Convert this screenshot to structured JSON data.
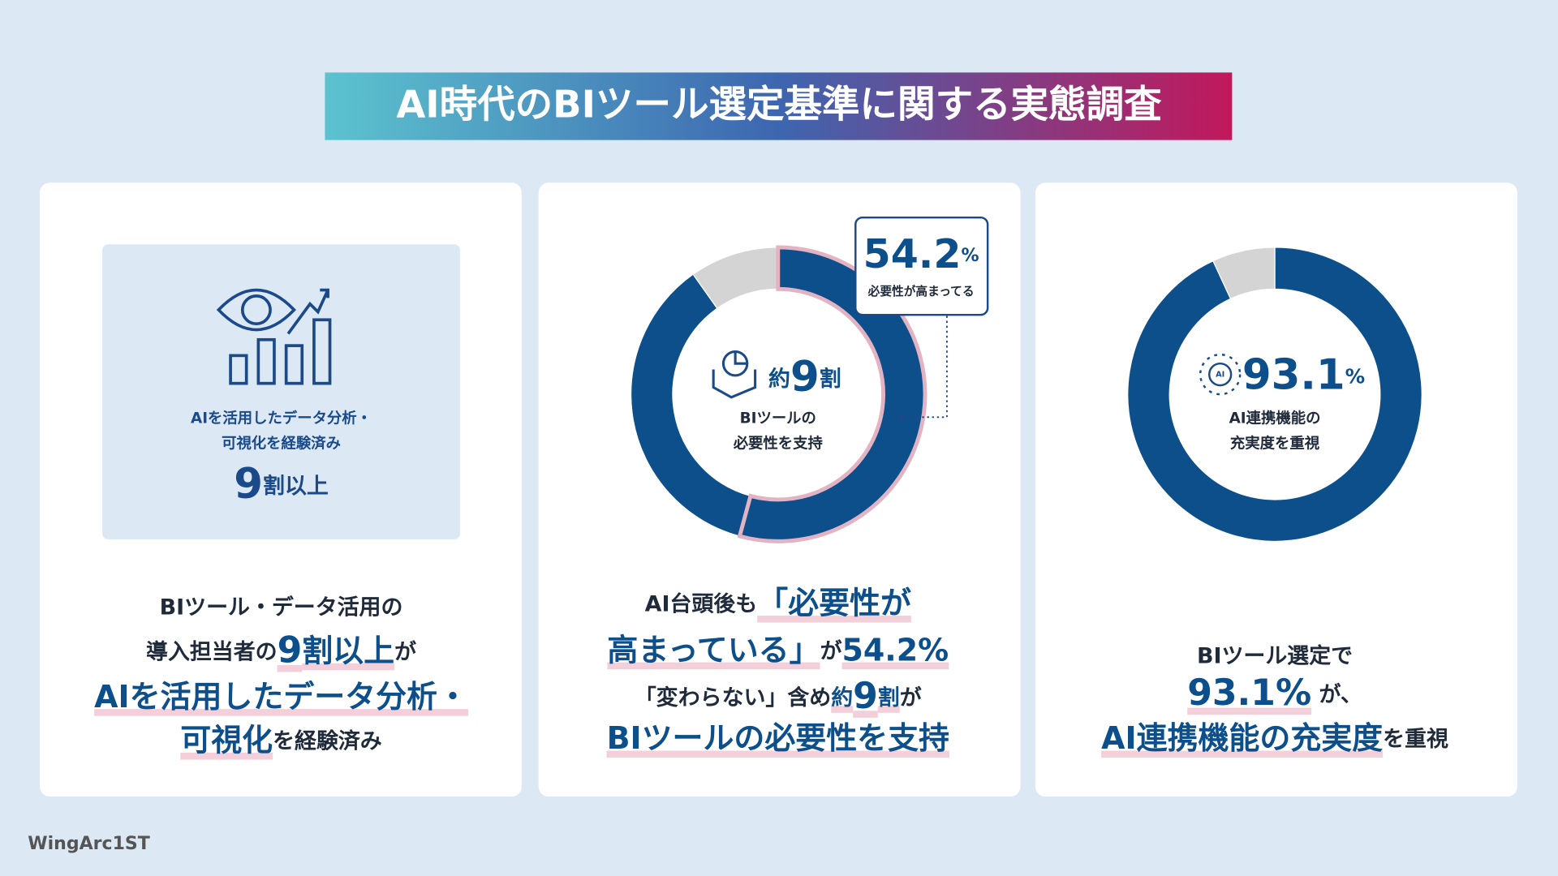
{
  "title": "AI時代のBIツール選定基準に関する実態調査",
  "panels": [
    {
      "box": {
        "lines": [
          "AIを活用したデータ分析・",
          "可視化を経験済み"
        ],
        "value": "9",
        "unit": "割以上"
      },
      "caption": [
        [
          {
            "text": "BIツール・データ活用の",
            "size": "s",
            "em": false
          }
        ],
        [
          {
            "text": "導入担当者の",
            "size": "s",
            "em": false
          },
          {
            "text": "9",
            "size": "l",
            "em": true
          },
          {
            "text": "割以上",
            "size": "m",
            "em": true
          },
          {
            "text": "が",
            "size": "s",
            "em": false
          }
        ],
        [
          {
            "text": "AIを活用したデータ分析・",
            "size": "m",
            "em": true
          }
        ],
        [
          {
            "text": "可視化",
            "size": "m",
            "em": true
          },
          {
            "text": "を経験済み",
            "size": "s",
            "em": false
          }
        ]
      ]
    },
    {
      "ring": {
        "values": [
          54.2,
          36,
          9.8
        ],
        "colors": [
          "#0d4f8b",
          "#0d4f8b",
          "#d4d4d4"
        ],
        "highlight": 0,
        "highlight_color": "#e3b3c3"
      },
      "center": {
        "lead": "約",
        "value": "9",
        "unit": "割",
        "lines": [
          "BIツールの",
          "必要性を支持"
        ]
      },
      "callout": {
        "unit": "%",
        "text": "必要性が高まってる"
      },
      "caption": [
        [
          {
            "text": "AI台頭後も",
            "size": "s",
            "em": false
          },
          {
            "text": "「必要性が",
            "size": "m",
            "em": true
          }
        ],
        [
          {
            "text": "高まっている」",
            "size": "m",
            "em": true
          },
          {
            "text": "が",
            "size": "s",
            "em": false
          },
          {
            "text": "54.2%",
            "size": "m",
            "em": true
          }
        ],
        [
          {
            "text": "「変わらない」含め",
            "size": "s",
            "em": false
          },
          {
            "text": "約",
            "size": "s",
            "em": true
          },
          {
            "text": "9",
            "size": "l",
            "em": true
          },
          {
            "text": "割",
            "size": "s",
            "em": true
          },
          {
            "text": "が",
            "size": "s",
            "em": false
          }
        ],
        [
          {
            "text": "BIツールの必要性を支持",
            "size": "m",
            "em": true
          }
        ]
      ]
    },
    {
      "ring": {
        "values": [
          93.1,
          6.9
        ],
        "colors": [
          "#0d4f8b",
          "#d4d4d4"
        ]
      },
      "center": {
        "unit": "%",
        "lines": [
          "AI連携機能の",
          "充実度を重視"
        ]
      },
      "caption": [
        [
          {
            "text": "BIツール選定で",
            "size": "s",
            "em": false
          }
        ],
        [
          {
            "text": "93.1%",
            "size": "l",
            "em": true
          },
          {
            "text": " が、",
            "size": "s",
            "em": false
          }
        ],
        [
          {
            "text": "AI連携機能の充実度",
            "size": "m",
            "em": true
          },
          {
            "text": "を重視",
            "size": "s",
            "em": false
          }
        ]
      ]
    }
  ],
  "logo": "WingArc1ST"
}
